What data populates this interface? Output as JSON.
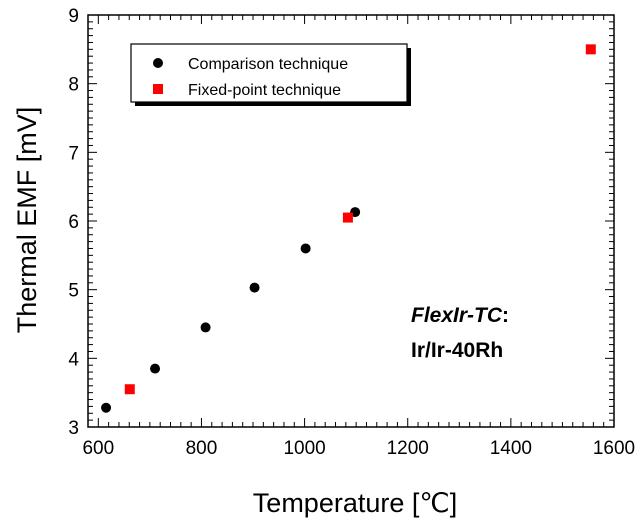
{
  "chart_data": {
    "type": "scatter",
    "xlabel": "Temperature [℃]",
    "ylabel": "Thermal EMF [mV]",
    "xlim": [
      580,
      1600
    ],
    "ylim": [
      3,
      9
    ],
    "xticks": [
      600,
      800,
      1000,
      1200,
      1400,
      1600
    ],
    "yticks": [
      3,
      4,
      5,
      6,
      7,
      8,
      9
    ],
    "grid": false,
    "legend_position": "top-left",
    "series": [
      {
        "name": "Comparison technique",
        "marker": "circle",
        "color": "#000000",
        "x": [
          615,
          710,
          808,
          903,
          1002,
          1098
        ],
        "y": [
          3.28,
          3.85,
          4.45,
          5.03,
          5.6,
          6.13
        ]
      },
      {
        "name": "Fixed-point technique",
        "marker": "square",
        "color": "#ff0000",
        "x": [
          661,
          1084,
          1555
        ],
        "y": [
          3.55,
          6.05,
          8.5
        ]
      }
    ],
    "annotation": {
      "name_italic": "FlexIr-TC",
      "name_suffix": ":",
      "line2": "Ir/Ir-40Rh"
    }
  }
}
